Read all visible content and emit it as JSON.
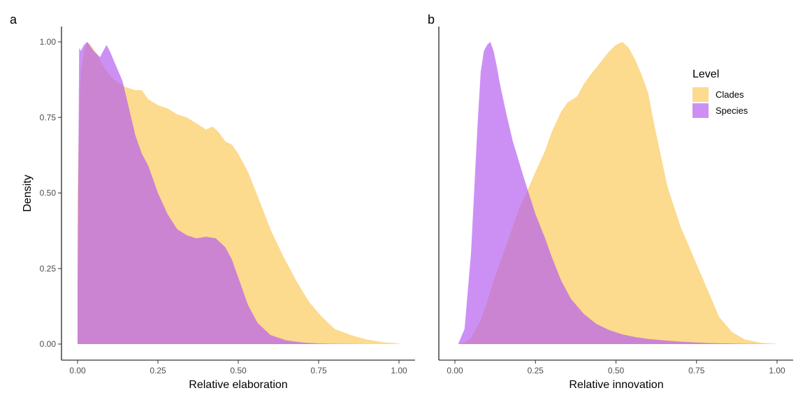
{
  "chart_data": [
    {
      "type": "area",
      "panel_tag": "a",
      "xlabel": "Relative elaboration",
      "ylabel": "Density",
      "xlim": [
        0,
        1
      ],
      "ylim": [
        0,
        1
      ],
      "x_ticks": [
        "0.00",
        "0.25",
        "0.50",
        "0.75",
        "1.00"
      ],
      "y_ticks": [
        "0.00",
        "0.25",
        "0.50",
        "0.75",
        "1.00"
      ],
      "series": [
        {
          "name": "Clades",
          "color": "#FBC858",
          "opacity": 0.68,
          "x": [
            0.0,
            0.005,
            0.01,
            0.02,
            0.03,
            0.04,
            0.06,
            0.08,
            0.1,
            0.12,
            0.15,
            0.18,
            0.2,
            0.22,
            0.25,
            0.28,
            0.31,
            0.34,
            0.37,
            0.4,
            0.42,
            0.44,
            0.46,
            0.48,
            0.5,
            0.53,
            0.56,
            0.6,
            0.64,
            0.68,
            0.72,
            0.76,
            0.8,
            0.85,
            0.9,
            0.95,
            1.0
          ],
          "y": [
            0.5,
            0.75,
            0.9,
            0.97,
            1.0,
            0.99,
            0.96,
            0.92,
            0.89,
            0.87,
            0.85,
            0.84,
            0.84,
            0.81,
            0.79,
            0.78,
            0.76,
            0.75,
            0.73,
            0.71,
            0.72,
            0.7,
            0.67,
            0.66,
            0.63,
            0.57,
            0.49,
            0.38,
            0.29,
            0.21,
            0.14,
            0.09,
            0.05,
            0.03,
            0.015,
            0.006,
            0.002
          ]
        },
        {
          "name": "Species",
          "color": "#B45CF0",
          "opacity": 0.68,
          "x": [
            0.0,
            0.005,
            0.01,
            0.02,
            0.03,
            0.05,
            0.07,
            0.09,
            0.1,
            0.12,
            0.14,
            0.16,
            0.18,
            0.2,
            0.22,
            0.25,
            0.28,
            0.31,
            0.34,
            0.37,
            0.4,
            0.43,
            0.46,
            0.48,
            0.5,
            0.53,
            0.56,
            0.6,
            0.65,
            0.7,
            0.75,
            0.8,
            0.9,
            1.0
          ],
          "y": [
            0.2,
            0.98,
            0.97,
            0.99,
            1.0,
            0.97,
            0.95,
            0.99,
            0.97,
            0.92,
            0.87,
            0.78,
            0.69,
            0.63,
            0.59,
            0.5,
            0.43,
            0.38,
            0.36,
            0.35,
            0.355,
            0.35,
            0.32,
            0.28,
            0.22,
            0.13,
            0.07,
            0.03,
            0.012,
            0.005,
            0.002,
            0.001,
            0.0,
            0.0
          ]
        }
      ]
    },
    {
      "type": "area",
      "panel_tag": "b",
      "xlabel": "Relative innovation",
      "ylabel": "",
      "xlim": [
        0,
        1
      ],
      "ylim": [
        0,
        1
      ],
      "x_ticks": [
        "0.00",
        "0.25",
        "0.50",
        "0.75",
        "1.00"
      ],
      "legend": {
        "title": "Level",
        "position": "top-right",
        "items": [
          {
            "label": "Clades",
            "color": "#FBC858"
          },
          {
            "label": "Species",
            "color": "#B45CF0"
          }
        ]
      },
      "series": [
        {
          "name": "Clades",
          "color": "#FBC858",
          "opacity": 0.68,
          "x": [
            0.01,
            0.03,
            0.05,
            0.08,
            0.1,
            0.12,
            0.15,
            0.18,
            0.2,
            0.23,
            0.25,
            0.28,
            0.3,
            0.33,
            0.35,
            0.38,
            0.4,
            0.42,
            0.45,
            0.48,
            0.5,
            0.52,
            0.54,
            0.56,
            0.58,
            0.6,
            0.62,
            0.64,
            0.66,
            0.7,
            0.74,
            0.78,
            0.82,
            0.86,
            0.9,
            0.95,
            1.0
          ],
          "y": [
            0.0,
            0.005,
            0.02,
            0.08,
            0.14,
            0.21,
            0.3,
            0.39,
            0.45,
            0.52,
            0.57,
            0.64,
            0.7,
            0.77,
            0.8,
            0.82,
            0.86,
            0.89,
            0.93,
            0.97,
            0.99,
            1.0,
            0.98,
            0.94,
            0.89,
            0.83,
            0.72,
            0.62,
            0.52,
            0.39,
            0.29,
            0.19,
            0.09,
            0.04,
            0.015,
            0.004,
            0.001
          ]
        },
        {
          "name": "Species",
          "color": "#B45CF0",
          "opacity": 0.68,
          "x": [
            0.01,
            0.03,
            0.05,
            0.07,
            0.08,
            0.09,
            0.1,
            0.11,
            0.12,
            0.13,
            0.14,
            0.16,
            0.18,
            0.2,
            0.22,
            0.25,
            0.28,
            0.3,
            0.33,
            0.36,
            0.4,
            0.44,
            0.48,
            0.52,
            0.56,
            0.6,
            0.65,
            0.7,
            0.75,
            0.8,
            0.85,
            0.9,
            1.0
          ],
          "y": [
            0.0,
            0.05,
            0.3,
            0.72,
            0.9,
            0.97,
            0.99,
            1.0,
            0.97,
            0.92,
            0.86,
            0.76,
            0.67,
            0.6,
            0.53,
            0.43,
            0.35,
            0.29,
            0.21,
            0.15,
            0.1,
            0.066,
            0.046,
            0.032,
            0.023,
            0.017,
            0.012,
            0.008,
            0.005,
            0.003,
            0.002,
            0.001,
            0.0
          ]
        }
      ]
    }
  ]
}
